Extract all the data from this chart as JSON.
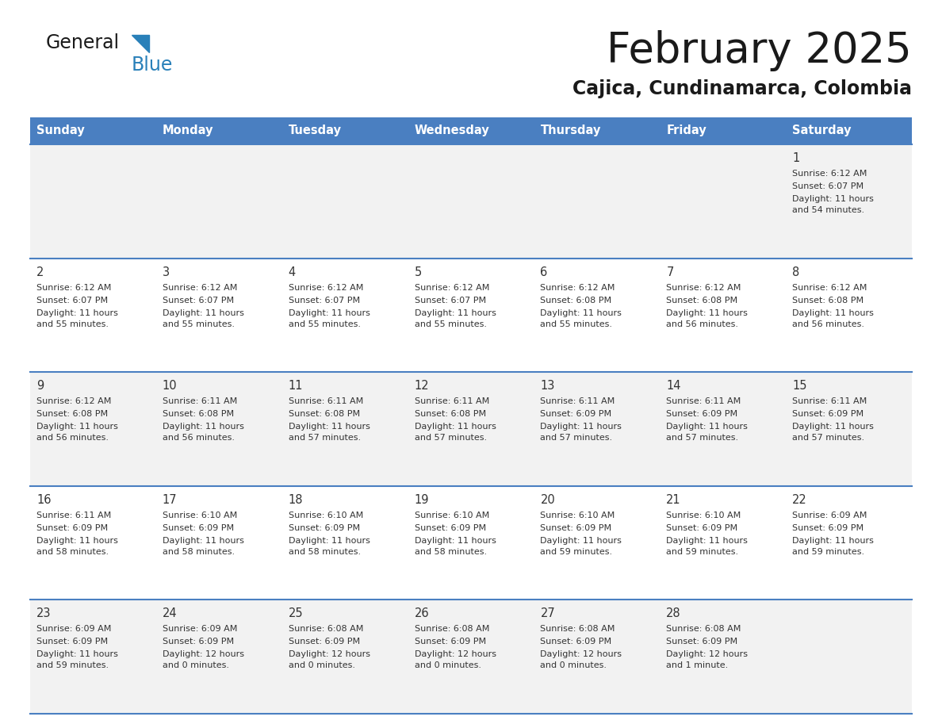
{
  "title": "February 2025",
  "subtitle": "Cajica, Cundinamarca, Colombia",
  "days_of_week": [
    "Sunday",
    "Monday",
    "Tuesday",
    "Wednesday",
    "Thursday",
    "Friday",
    "Saturday"
  ],
  "header_bg": "#4a7fc1",
  "header_text": "#FFFFFF",
  "row_bg_light": "#F2F2F2",
  "row_bg_white": "#FFFFFF",
  "cell_text": "#333333",
  "title_color": "#1a1a1a",
  "subtitle_color": "#1a1a1a",
  "line_color": "#4a7fc1",
  "logo_general_color": "#1a1a1a",
  "logo_blue_color": "#2980B9",
  "logo_triangle_color": "#2980B9",
  "calendar_data": [
    [
      null,
      null,
      null,
      null,
      null,
      null,
      {
        "day": 1,
        "sunrise": "6:12 AM",
        "sunset": "6:07 PM",
        "daylight": "11 hours and 54 minutes."
      }
    ],
    [
      {
        "day": 2,
        "sunrise": "6:12 AM",
        "sunset": "6:07 PM",
        "daylight": "11 hours and 55 minutes."
      },
      {
        "day": 3,
        "sunrise": "6:12 AM",
        "sunset": "6:07 PM",
        "daylight": "11 hours and 55 minutes."
      },
      {
        "day": 4,
        "sunrise": "6:12 AM",
        "sunset": "6:07 PM",
        "daylight": "11 hours and 55 minutes."
      },
      {
        "day": 5,
        "sunrise": "6:12 AM",
        "sunset": "6:07 PM",
        "daylight": "11 hours and 55 minutes."
      },
      {
        "day": 6,
        "sunrise": "6:12 AM",
        "sunset": "6:08 PM",
        "daylight": "11 hours and 55 minutes."
      },
      {
        "day": 7,
        "sunrise": "6:12 AM",
        "sunset": "6:08 PM",
        "daylight": "11 hours and 56 minutes."
      },
      {
        "day": 8,
        "sunrise": "6:12 AM",
        "sunset": "6:08 PM",
        "daylight": "11 hours and 56 minutes."
      }
    ],
    [
      {
        "day": 9,
        "sunrise": "6:12 AM",
        "sunset": "6:08 PM",
        "daylight": "11 hours and 56 minutes."
      },
      {
        "day": 10,
        "sunrise": "6:11 AM",
        "sunset": "6:08 PM",
        "daylight": "11 hours and 56 minutes."
      },
      {
        "day": 11,
        "sunrise": "6:11 AM",
        "sunset": "6:08 PM",
        "daylight": "11 hours and 57 minutes."
      },
      {
        "day": 12,
        "sunrise": "6:11 AM",
        "sunset": "6:08 PM",
        "daylight": "11 hours and 57 minutes."
      },
      {
        "day": 13,
        "sunrise": "6:11 AM",
        "sunset": "6:09 PM",
        "daylight": "11 hours and 57 minutes."
      },
      {
        "day": 14,
        "sunrise": "6:11 AM",
        "sunset": "6:09 PM",
        "daylight": "11 hours and 57 minutes."
      },
      {
        "day": 15,
        "sunrise": "6:11 AM",
        "sunset": "6:09 PM",
        "daylight": "11 hours and 57 minutes."
      }
    ],
    [
      {
        "day": 16,
        "sunrise": "6:11 AM",
        "sunset": "6:09 PM",
        "daylight": "11 hours and 58 minutes."
      },
      {
        "day": 17,
        "sunrise": "6:10 AM",
        "sunset": "6:09 PM",
        "daylight": "11 hours and 58 minutes."
      },
      {
        "day": 18,
        "sunrise": "6:10 AM",
        "sunset": "6:09 PM",
        "daylight": "11 hours and 58 minutes."
      },
      {
        "day": 19,
        "sunrise": "6:10 AM",
        "sunset": "6:09 PM",
        "daylight": "11 hours and 58 minutes."
      },
      {
        "day": 20,
        "sunrise": "6:10 AM",
        "sunset": "6:09 PM",
        "daylight": "11 hours and 59 minutes."
      },
      {
        "day": 21,
        "sunrise": "6:10 AM",
        "sunset": "6:09 PM",
        "daylight": "11 hours and 59 minutes."
      },
      {
        "day": 22,
        "sunrise": "6:09 AM",
        "sunset": "6:09 PM",
        "daylight": "11 hours and 59 minutes."
      }
    ],
    [
      {
        "day": 23,
        "sunrise": "6:09 AM",
        "sunset": "6:09 PM",
        "daylight": "11 hours and 59 minutes."
      },
      {
        "day": 24,
        "sunrise": "6:09 AM",
        "sunset": "6:09 PM",
        "daylight": "12 hours and 0 minutes."
      },
      {
        "day": 25,
        "sunrise": "6:08 AM",
        "sunset": "6:09 PM",
        "daylight": "12 hours and 0 minutes."
      },
      {
        "day": 26,
        "sunrise": "6:08 AM",
        "sunset": "6:09 PM",
        "daylight": "12 hours and 0 minutes."
      },
      {
        "day": 27,
        "sunrise": "6:08 AM",
        "sunset": "6:09 PM",
        "daylight": "12 hours and 0 minutes."
      },
      {
        "day": 28,
        "sunrise": "6:08 AM",
        "sunset": "6:09 PM",
        "daylight": "12 hours and 1 minute."
      },
      null
    ]
  ]
}
